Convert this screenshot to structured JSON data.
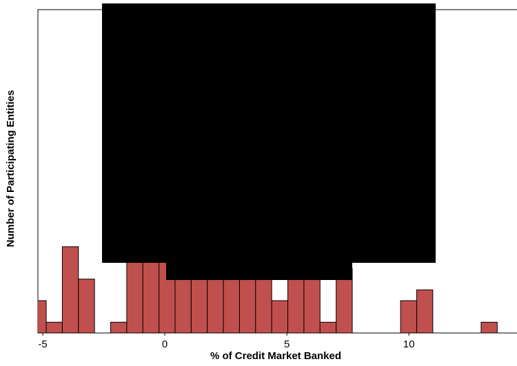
{
  "chart_data": {
    "type": "histogram",
    "xlabel": "% of Credit Market Banked",
    "ylabel": "Number of Participating Entities",
    "bins": [
      -5.52,
      -4.86,
      -4.2,
      -3.54,
      -2.88,
      -2.22,
      -1.56,
      -0.9,
      -0.24,
      0.42,
      1.08,
      1.74,
      2.4,
      3.06,
      3.72,
      4.38,
      5.04,
      5.7,
      6.36,
      7.02,
      7.68,
      8.34,
      9.0,
      9.66,
      10.32,
      10.98,
      11.64,
      12.3,
      12.96,
      13.62,
      14.28
    ],
    "values": [
      3,
      1,
      8,
      5,
      0,
      1,
      10,
      10,
      9,
      10,
      12,
      14,
      15,
      13,
      11,
      3,
      9,
      7,
      1,
      6,
      0,
      0,
      0,
      3,
      4,
      0,
      0,
      0,
      1,
      0
    ],
    "color": "#c0504d",
    "xlim": [
      -5.2,
      14.43
    ],
    "xticks": [
      -5,
      0,
      5,
      10
    ],
    "ylim": [
      0,
      30
    ]
  }
}
